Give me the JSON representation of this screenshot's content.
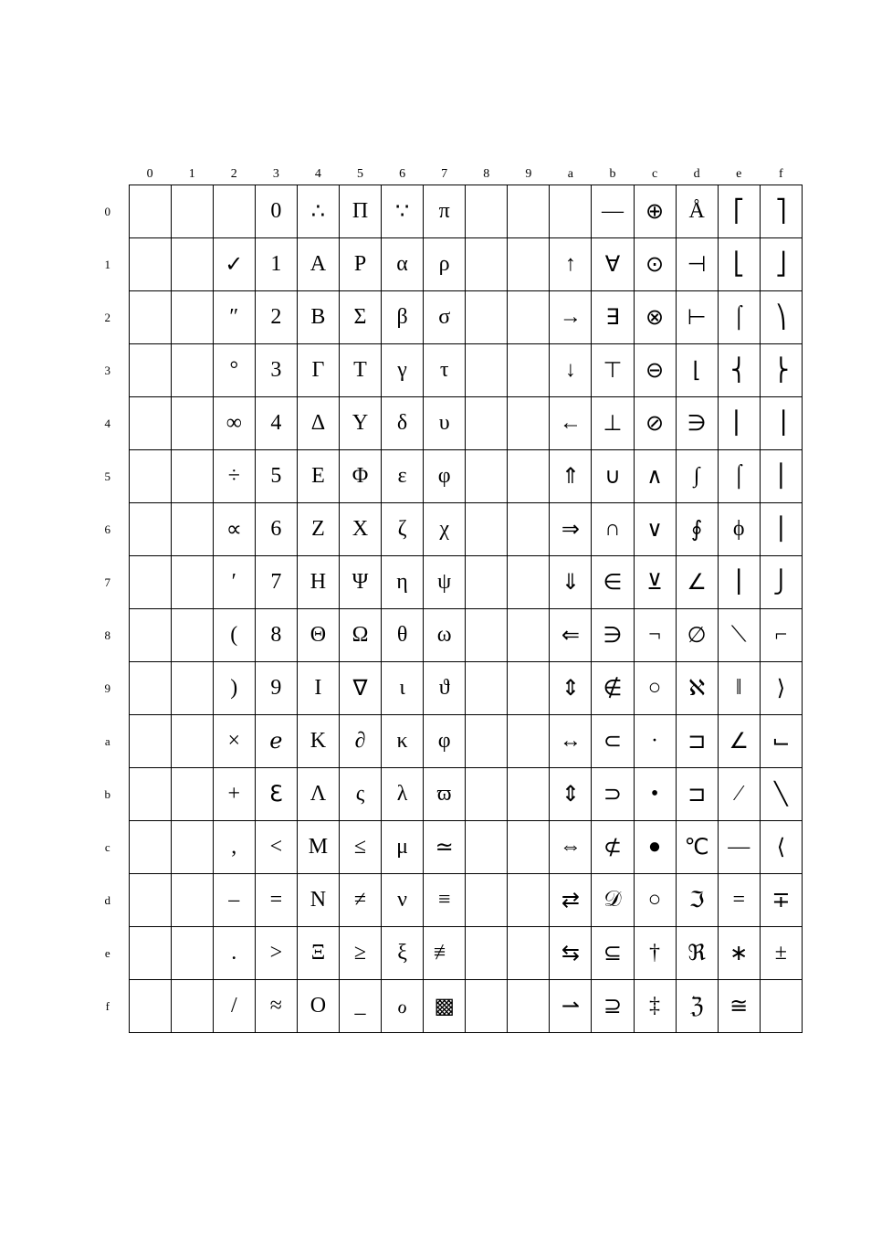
{
  "grid": {
    "type": "table",
    "font_family": "Times New Roman, serif",
    "cell_font_size": 24,
    "header_font_size": 14,
    "row_header_font_size": 13,
    "border_color": "#000000",
    "background_color": "#ffffff",
    "col_headers": [
      "0",
      "1",
      "2",
      "3",
      "4",
      "5",
      "6",
      "7",
      "8",
      "9",
      "a",
      "b",
      "c",
      "d",
      "e",
      "f"
    ],
    "row_headers": [
      "0",
      "1",
      "2",
      "3",
      "4",
      "5",
      "6",
      "7",
      "8",
      "9",
      "a",
      "b",
      "c",
      "d",
      "e",
      "f"
    ],
    "cells": [
      [
        "",
        "",
        "",
        "0",
        "∴",
        "Π",
        "∵",
        "π",
        "",
        "",
        "",
        "—",
        "⊕",
        "Å",
        "⎡",
        "⎤"
      ],
      [
        "",
        "",
        "✓",
        "1",
        "Α",
        "Ρ",
        "α",
        "ρ",
        "",
        "",
        "↑",
        "∀",
        "⊙",
        "⊣",
        "⎣",
        "⎦"
      ],
      [
        "",
        "",
        "″",
        "2",
        "Β",
        "Σ",
        "β",
        "σ",
        "",
        "",
        "→",
        "∃",
        "⊗",
        "⊢",
        "⌠",
        "⎞"
      ],
      [
        "",
        "",
        "°",
        "3",
        "Γ",
        "Τ",
        "γ",
        "τ",
        "",
        "",
        "↓",
        "⊤",
        "⊖",
        "⌊",
        "⎨",
        "⎬"
      ],
      [
        "",
        "",
        "∞",
        "4",
        "Δ",
        "Υ",
        "δ",
        "υ",
        "",
        "",
        "←",
        "⊥",
        "⊘",
        "∋",
        "⎜",
        "⎟"
      ],
      [
        "",
        "",
        "÷",
        "5",
        "Ε",
        "Φ",
        "ε",
        "φ",
        "",
        "",
        "⇑",
        "∪",
        "∧",
        "∫",
        "⌠",
        "⎪"
      ],
      [
        "",
        "",
        "∝",
        "6",
        "Ζ",
        "Χ",
        "ζ",
        "χ",
        "",
        "",
        "⇒",
        "∩",
        "∨",
        "∮",
        "ϕ",
        "⎪"
      ],
      [
        "",
        "",
        "′",
        "7",
        "Η",
        "Ψ",
        "η",
        "ψ",
        "",
        "",
        "⇓",
        "∈",
        "⊻",
        "∠",
        "⎮",
        "⎭"
      ],
      [
        "",
        "",
        "(",
        "8",
        "Θ",
        "Ω",
        "θ",
        "ω",
        "",
        "",
        "⇐",
        "∋",
        "¬",
        "∅",
        "⟍",
        "⌐"
      ],
      [
        "",
        "",
        ")",
        "9",
        "Ι",
        "∇",
        "ι",
        "ϑ",
        "",
        "",
        "⇕",
        "∉",
        "○",
        "ℵ",
        "‖",
        "⟩"
      ],
      [
        "",
        "",
        "×",
        "ℯ",
        "Κ",
        "∂",
        "κ",
        "φ",
        "",
        "",
        "↔",
        "⊂",
        "·",
        "⊐",
        "∠",
        "⌙"
      ],
      [
        "",
        "",
        "+",
        "ℇ",
        "Λ",
        "ς",
        "λ",
        "ϖ",
        "",
        "",
        "⇕",
        "⊃",
        "•",
        "⊐",
        "⁄",
        "╲"
      ],
      [
        "",
        "",
        ",",
        "<",
        "Μ",
        "≤",
        "μ",
        "≃",
        "",
        "",
        "⇔",
        "⊄",
        "●",
        "℃",
        "—",
        "⟨"
      ],
      [
        "",
        "",
        "–",
        "=",
        "Ν",
        "≠",
        "ν",
        "≡",
        "",
        "",
        "⇄",
        "𝒟",
        "○",
        "ℑ",
        "=",
        "∓"
      ],
      [
        "",
        "",
        ".",
        ">",
        "Ξ",
        "≥",
        "ξ",
        "≢",
        "",
        "",
        "⇆",
        "⊆",
        "†",
        "ℜ",
        "∗",
        "±"
      ],
      [
        "",
        "",
        "/",
        "≈",
        "Ο",
        "_",
        "ℴ",
        "▩",
        "",
        "",
        "⇀",
        "⊇",
        "‡",
        "ℨ",
        "≅",
        ""
      ]
    ]
  }
}
